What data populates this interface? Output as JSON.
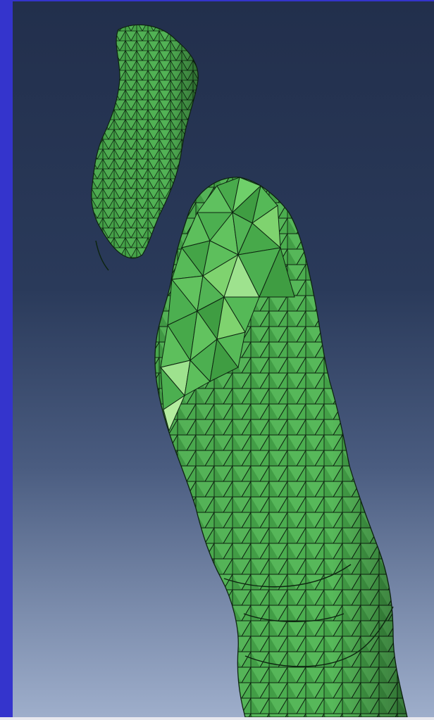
{
  "viewport": {
    "background_top": "#222f4c",
    "background_bottom": "#9eaecb",
    "frame_color": "#3434cc"
  },
  "model": {
    "mesh_color": "#4caf50",
    "mesh_light": "#7fd36f",
    "mesh_dark": "#2f7d32",
    "edge_color": "#0d2410",
    "parts": [
      "upper-mesh-fragment",
      "lower-mesh-body"
    ]
  }
}
